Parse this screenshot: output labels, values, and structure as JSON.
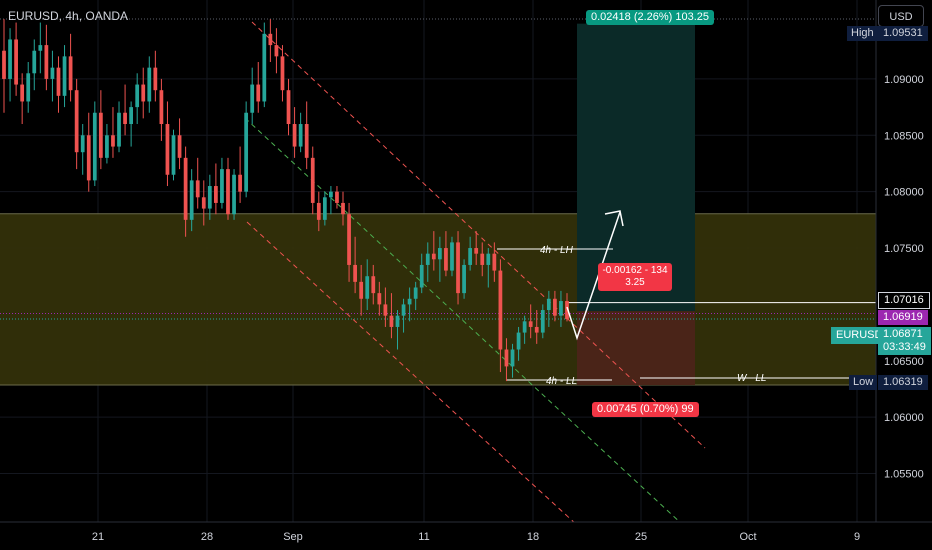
{
  "header": {
    "title": "EURUSD, 4h, OANDA",
    "currency_button": "USD"
  },
  "price_axis": {
    "ticks": [
      "1.09000",
      "1.08500",
      "1.08000",
      "1.07500",
      "1.06500",
      "1.06000",
      "1.05500"
    ],
    "high": {
      "label": "High",
      "value": "1.09531"
    },
    "low": {
      "label": "Low",
      "value": "1.06319"
    },
    "level_white": "1.07016",
    "level_purple": "1.06919",
    "symbol_tag": "EURUSD",
    "current_price": "1.06871",
    "countdown": "03:33:49"
  },
  "time_axis": {
    "ticks": [
      "21",
      "28",
      "Sep",
      "11",
      "18",
      "25",
      "Oct",
      "9"
    ]
  },
  "annotations": {
    "long_target": "0.02418 (2.26%) 103.25",
    "stop_loss": "0.00745 (0.70%) 99",
    "measure_line1": "-0.00162 - 134",
    "measure_line2": "3.25",
    "label_4h_lh": "4h - LH",
    "label_4h_ll": "4h - LL",
    "label_w_ll": "W - LL"
  },
  "colors": {
    "background": "#000000",
    "bull": "#26a69a",
    "bear": "#ef5350",
    "zone": "#33300a",
    "target_zone": "#0b2a28",
    "stop_zone": "#4a2418",
    "purple": "#9c27b0",
    "high_low_tag": "#0f1e3e",
    "price_tag": "#26a69a",
    "long_tag": "#089981",
    "stop_tag": "#f23645"
  },
  "chart_data": {
    "type": "candlestick",
    "symbol": "EURUSD",
    "interval": "4h",
    "source": "OANDA",
    "candles": [
      [
        1.0925,
        1.0953,
        1.087,
        1.09
      ],
      [
        1.09,
        1.0945,
        1.088,
        1.0935
      ],
      [
        1.0935,
        1.095,
        1.0885,
        1.0895
      ],
      [
        1.0895,
        1.0905,
        1.086,
        1.088
      ],
      [
        1.088,
        1.0915,
        1.087,
        1.0905
      ],
      [
        1.0905,
        1.0935,
        1.089,
        1.0925
      ],
      [
        1.0925,
        1.095,
        1.0905,
        1.093
      ],
      [
        1.093,
        1.0948,
        1.089,
        1.09
      ],
      [
        1.09,
        1.0925,
        1.088,
        1.091
      ],
      [
        1.091,
        1.092,
        1.087,
        1.0885
      ],
      [
        1.0885,
        1.093,
        1.0875,
        1.092
      ],
      [
        1.092,
        1.094,
        1.088,
        1.089
      ],
      [
        1.089,
        1.09,
        1.082,
        1.0835
      ],
      [
        1.0835,
        1.086,
        1.0815,
        1.085
      ],
      [
        1.085,
        1.087,
        1.08,
        1.081
      ],
      [
        1.081,
        1.088,
        1.0805,
        1.087
      ],
      [
        1.087,
        1.089,
        1.082,
        1.083
      ],
      [
        1.083,
        1.086,
        1.0825,
        1.085
      ],
      [
        1.085,
        1.0875,
        1.083,
        1.084
      ],
      [
        1.084,
        1.088,
        1.0835,
        1.087
      ],
      [
        1.087,
        1.0895,
        1.085,
        1.086
      ],
      [
        1.086,
        1.088,
        1.084,
        1.0875
      ],
      [
        1.0875,
        1.0905,
        1.086,
        1.0895
      ],
      [
        1.0895,
        1.091,
        1.0865,
        1.088
      ],
      [
        1.088,
        1.092,
        1.087,
        1.091
      ],
      [
        1.091,
        1.0925,
        1.088,
        1.089
      ],
      [
        1.089,
        1.09,
        1.0845,
        1.086
      ],
      [
        1.086,
        1.088,
        1.0805,
        1.0815
      ],
      [
        1.0815,
        1.0855,
        1.081,
        1.085
      ],
      [
        1.085,
        1.0865,
        1.082,
        1.083
      ],
      [
        1.083,
        1.084,
        1.076,
        1.0775
      ],
      [
        1.0775,
        1.082,
        1.0765,
        1.081
      ],
      [
        1.081,
        1.083,
        1.0785,
        1.0795
      ],
      [
        1.0795,
        1.081,
        1.077,
        1.0785
      ],
      [
        1.0785,
        1.0815,
        1.0775,
        1.0805
      ],
      [
        1.0805,
        1.0825,
        1.078,
        1.079
      ],
      [
        1.079,
        1.083,
        1.0785,
        1.082
      ],
      [
        1.082,
        1.083,
        1.0775,
        1.078
      ],
      [
        1.078,
        1.082,
        1.0775,
        1.0815
      ],
      [
        1.0815,
        1.084,
        1.079,
        1.08
      ],
      [
        1.08,
        1.088,
        1.0795,
        1.087
      ],
      [
        1.087,
        1.091,
        1.086,
        1.0895
      ],
      [
        1.0895,
        1.0915,
        1.087,
        1.088
      ],
      [
        1.088,
        1.095,
        1.0875,
        1.094
      ],
      [
        1.094,
        1.0953,
        1.0915,
        1.093
      ],
      [
        1.093,
        1.0945,
        1.0905,
        1.092
      ],
      [
        1.092,
        1.093,
        1.088,
        1.089
      ],
      [
        1.089,
        1.09,
        1.085,
        1.086
      ],
      [
        1.086,
        1.0875,
        1.083,
        1.084
      ],
      [
        1.084,
        1.087,
        1.0835,
        1.086
      ],
      [
        1.086,
        1.088,
        1.082,
        1.083
      ],
      [
        1.083,
        1.084,
        1.078,
        1.079
      ],
      [
        1.079,
        1.08,
        1.0765,
        1.0775
      ],
      [
        1.0775,
        1.08,
        1.077,
        1.0795
      ],
      [
        1.0795,
        1.0805,
        1.078,
        1.08
      ],
      [
        1.08,
        1.0805,
        1.0785,
        1.079
      ],
      [
        1.079,
        1.08,
        1.077,
        1.078
      ],
      [
        1.078,
        1.079,
        1.072,
        1.0735
      ],
      [
        1.0735,
        1.076,
        1.071,
        1.072
      ],
      [
        1.072,
        1.0735,
        1.069,
        1.0705
      ],
      [
        1.0705,
        1.074,
        1.0695,
        1.0725
      ],
      [
        1.0725,
        1.0735,
        1.07,
        1.071
      ],
      [
        1.071,
        1.072,
        1.069,
        1.07
      ],
      [
        1.07,
        1.0715,
        1.068,
        1.069
      ],
      [
        1.069,
        1.071,
        1.067,
        1.068
      ],
      [
        1.068,
        1.0695,
        1.066,
        1.069
      ],
      [
        1.069,
        1.0705,
        1.0675,
        1.07
      ],
      [
        1.07,
        1.0715,
        1.0685,
        1.0705
      ],
      [
        1.0705,
        1.072,
        1.0695,
        1.0715
      ],
      [
        1.0715,
        1.0745,
        1.071,
        1.0735
      ],
      [
        1.0735,
        1.0755,
        1.072,
        1.0745
      ],
      [
        1.0745,
        1.0765,
        1.073,
        1.074
      ],
      [
        1.074,
        1.076,
        1.072,
        1.075
      ],
      [
        1.075,
        1.0765,
        1.0725,
        1.073
      ],
      [
        1.073,
        1.076,
        1.0725,
        1.0755
      ],
      [
        1.0755,
        1.0765,
        1.07,
        1.071
      ],
      [
        1.071,
        1.074,
        1.0705,
        1.0735
      ],
      [
        1.0735,
        1.076,
        1.073,
        1.075
      ],
      [
        1.075,
        1.0765,
        1.0735,
        1.0745
      ],
      [
        1.0745,
        1.0755,
        1.0725,
        1.0735
      ],
      [
        1.0735,
        1.075,
        1.0715,
        1.0745
      ],
      [
        1.0745,
        1.0755,
        1.072,
        1.073
      ],
      [
        1.073,
        1.074,
        1.064,
        1.066
      ],
      [
        1.066,
        1.067,
        1.0632,
        1.0645
      ],
      [
        1.0645,
        1.0665,
        1.0635,
        1.066
      ],
      [
        1.066,
        1.068,
        1.065,
        1.0675
      ],
      [
        1.0675,
        1.069,
        1.0665,
        1.0685
      ],
      [
        1.0685,
        1.07,
        1.067,
        1.068
      ],
      [
        1.068,
        1.0695,
        1.0665,
        1.0675
      ],
      [
        1.0675,
        1.07,
        1.067,
        1.0695
      ],
      [
        1.0695,
        1.0712,
        1.068,
        1.0705
      ],
      [
        1.0705,
        1.0712,
        1.0685,
        1.069
      ],
      [
        1.069,
        1.0712,
        1.068,
        1.0703
      ],
      [
        1.0703,
        1.071,
        1.0685,
        1.0687
      ]
    ],
    "high": 1.09531,
    "low": 1.06319,
    "last": 1.06871,
    "levels": [
      1.07016,
      1.06919
    ],
    "yrange": [
      1.0507,
      1.097
    ],
    "x_ticks": [
      "21",
      "28",
      "Sep",
      "11",
      "18",
      "25",
      "Oct",
      "9"
    ]
  }
}
